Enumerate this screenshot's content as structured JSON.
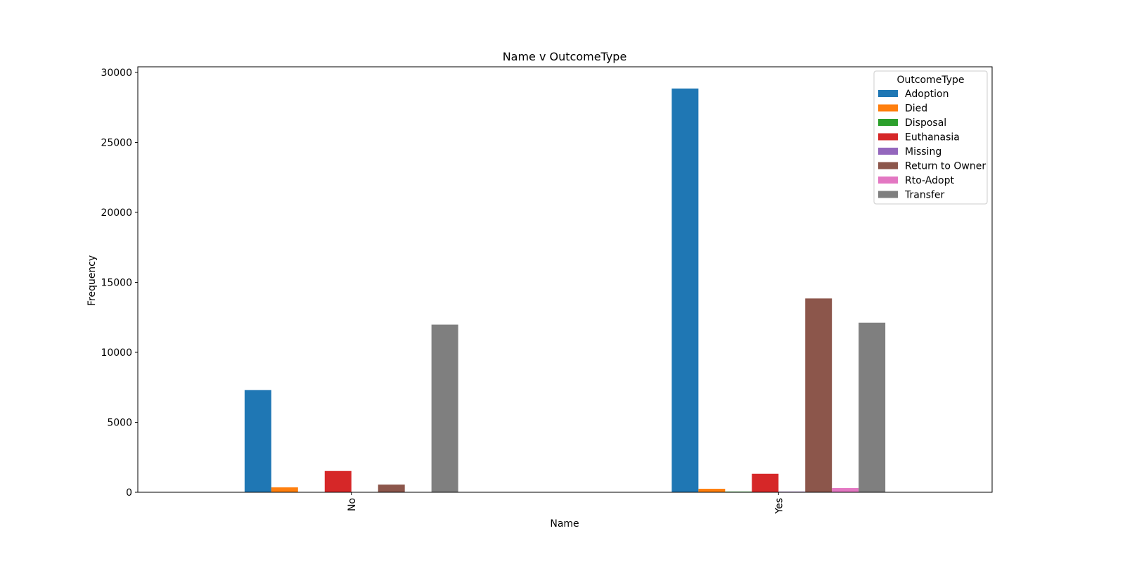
{
  "chart_data": {
    "type": "bar",
    "title": "Name v OutcomeType",
    "xlabel": "Name",
    "ylabel": "Frequency",
    "categories": [
      "No",
      "Yes"
    ],
    "ylim": [
      0,
      30400
    ],
    "yticks": [
      0,
      5000,
      10000,
      15000,
      20000,
      25000,
      30000
    ],
    "legend": {
      "title": "OutcomeType",
      "placement": "top-right"
    },
    "series": [
      {
        "name": "Adoption",
        "color": "#1f77b4",
        "values": [
          7300,
          28850
        ]
      },
      {
        "name": "Died",
        "color": "#ff7f0e",
        "values": [
          350,
          250
        ]
      },
      {
        "name": "Disposal",
        "color": "#2ca02c",
        "values": [
          0,
          50
        ]
      },
      {
        "name": "Euthanasia",
        "color": "#d62728",
        "values": [
          1520,
          1320
        ]
      },
      {
        "name": "Missing",
        "color": "#9467bd",
        "values": [
          0,
          50
        ]
      },
      {
        "name": "Return to Owner",
        "color": "#8c564b",
        "values": [
          550,
          13850
        ]
      },
      {
        "name": "Rto-Adopt",
        "color": "#e377c2",
        "values": [
          0,
          300
        ]
      },
      {
        "name": "Transfer",
        "color": "#7f7f7f",
        "values": [
          11980,
          12120
        ]
      }
    ]
  }
}
